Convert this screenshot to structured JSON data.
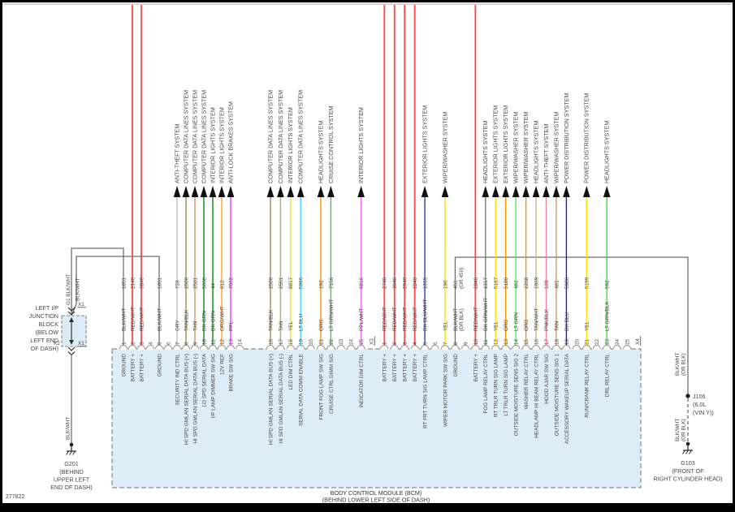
{
  "page": {
    "doc_number": "277822",
    "bcm_caption_line1": "BODY CONTROL MODULE (BCM)",
    "bcm_caption_line2": "(BEHIND LOWER LEFT SIDE OF DASH)"
  },
  "junction_block": {
    "label_lines": [
      "LEFT I/P",
      "JUNCTION",
      "BLOCK",
      "(BELOW",
      "LEFT END",
      "OF DASH)"
    ],
    "top_connector": "X1",
    "bottom_left_connector": "K2",
    "bottom_right_connector": "X1",
    "feed_wire_left_label": "G1 BLK/WHT",
    "feed_wire_right_label": "BLK/WHT",
    "ground_wire_label": "BLK/WHT",
    "ground_id": "G201",
    "ground_location_lines": [
      "(BEHIND",
      "UPPER LEFT",
      "END OF DASH)"
    ]
  },
  "right_ground_path": {
    "upper_wire_label": [
      "BLK/WHT",
      "(OR BLK)"
    ],
    "splice_id": "J106",
    "splice_note_lines": [
      "(6.0L",
      "(VIN Y))"
    ],
    "lower_wire_label": [
      "BLK/WHT",
      "(OR BLK)"
    ],
    "ground_id": "G103",
    "ground_location_lines": [
      "(FRONT OF",
      "RIGHT CYLINDER HEAD)"
    ]
  },
  "connectors": [
    {
      "end_label": "",
      "pins": [
        {
          "n": "1",
          "color": "BLK/WHT",
          "circuit": "1851",
          "fn": "GROUND",
          "dest": "",
          "route": "jb1"
        },
        {
          "n": "2",
          "color": "RED/WHT",
          "circuit": "2140",
          "fn": "BATTERY +",
          "dest": "",
          "route": "top"
        },
        {
          "n": "3",
          "color": "RED/WHT",
          "circuit": "3840",
          "fn": "BATTERY +",
          "dest": "",
          "route": "top"
        },
        {
          "n": "4",
          "color": "",
          "circuit": "",
          "fn": "",
          "dest": "",
          "route": ""
        },
        {
          "n": "5",
          "color": "BLK/WHT",
          "circuit": "1851",
          "fn": "GROUND",
          "dest": "",
          "route": "jb2"
        },
        {
          "n": "6",
          "color": "",
          "circuit": "",
          "fn": "",
          "dest": "",
          "route": ""
        },
        {
          "n": "7",
          "color": "GRY",
          "circuit": "728",
          "fn": "SECURITY IND CTRL",
          "dest": "ANTI-THEFT SYSTEM",
          "route": "arrow"
        },
        {
          "n": "8",
          "color": "TAN/BLK",
          "circuit": "2500",
          "fn": "HI SPD GMLAN SERIAL DATA BUS (+)",
          "dest": "COMPUTER DATA LINES SYSTEM",
          "route": "arrow"
        },
        {
          "n": "9",
          "color": "TAN",
          "circuit": "2501",
          "fn": "HI SPD GMLAN SERIAL DATA BUS (-)",
          "dest": "COMPUTER DATA LINES SYSTEM",
          "route": "arrow"
        },
        {
          "n": "10",
          "color": "DK GRN",
          "circuit": "5060",
          "fn": "LO SPD SERIAL DATA",
          "dest": "COMPUTER DATA LINES SYSTEM",
          "route": "arrow"
        },
        {
          "n": "11",
          "color": "DK GRN",
          "circuit": "44",
          "fn": "I/P LAMP DIMMER SW SIG",
          "dest": "INTERIOR LIGHTS SYSTEM",
          "route": "arrow"
        },
        {
          "n": "12",
          "color": "ORG/WHT",
          "circuit": "812",
          "fn": "12V REF",
          "dest": "INTERIOR LIGHTS SYSTEM",
          "route": "arrow"
        },
        {
          "n": "13",
          "color": "PPL",
          "circuit": "7062",
          "fn": "BRAKE SW SIG",
          "dest": "ANTI-LOCK BRAKES SYSTEM",
          "route": "arrow"
        },
        {
          "n": "14",
          "color": "",
          "circuit": "",
          "fn": "",
          "dest": "",
          "route": ""
        }
      ]
    },
    {
      "end_label": "X3",
      "pins": [
        {
          "n": "16",
          "color": "TAN/BLK",
          "circuit": "2500",
          "fn": "HI SPD GMLAN SERIAL DATA BUS (+)",
          "dest": "COMPUTER DATA LINES SYSTEM",
          "route": "arrow"
        },
        {
          "n": "17",
          "color": "TAN",
          "circuit": "2501",
          "fn": "HI SPD GMLAN SERIAL DATA BUS (-)",
          "dest": "COMPUTER DATA LINES SYSTEM",
          "route": "arrow"
        },
        {
          "n": "18",
          "color": "YEL",
          "circuit": "8817",
          "fn": "LED DIM CTRL",
          "dest": "INTERIOR LIGHTS SYSTEM",
          "route": "arrow"
        },
        {
          "n": "19",
          "color": "LT BLU",
          "circuit": "5986",
          "fn": "SERIAL DATA COMM ENABLE",
          "dest": "COMPUTER DATA LINES SYSTEM",
          "route": "arrow"
        },
        {
          "n": "20",
          "color": "",
          "circuit": "",
          "fn": "",
          "dest": "",
          "route": ""
        },
        {
          "n": "21",
          "color": "ORG",
          "circuit": "192",
          "fn": "FRONT FOG LAMP SW SIG",
          "dest": "HEADLIGHTS SYSTEM",
          "route": "arrow"
        },
        {
          "n": "22",
          "color": "LT GRN/WHT",
          "circuit": "7156",
          "fn": "CRUISE CTRL DIMM SIG",
          "dest": "CRUISE CONTROL SYSTEM",
          "route": "arrow"
        },
        {
          "n": "23",
          "color": "",
          "circuit": "",
          "fn": "",
          "dest": "",
          "route": ""
        },
        {
          "n": "24",
          "color": "",
          "circuit": "",
          "fn": "",
          "dest": "",
          "route": ""
        },
        {
          "n": "25",
          "color": "PPL/WHT",
          "circuit": "8816",
          "fn": "INDICATOR DIM CTRL",
          "dest": "INTERIOR LIGHTS SYSTEM",
          "route": "arrow"
        }
      ]
    },
    {
      "end_label": "X4",
      "pins": [
        {
          "n": "1",
          "color": "RED/WHT",
          "circuit": "2740",
          "fn": "BATTERY +",
          "dest": "",
          "route": "top"
        },
        {
          "n": "2",
          "color": "RED/WHT",
          "circuit": "3040",
          "fn": "BATTERY +",
          "dest": "",
          "route": "top"
        },
        {
          "n": "3",
          "color": "RED/WHT",
          "circuit": "2940",
          "fn": "BATTERY +",
          "dest": "",
          "route": "top"
        },
        {
          "n": "4",
          "color": "RED/WHT",
          "circuit": "2240",
          "fn": "BATTERY +",
          "dest": "",
          "route": "top"
        },
        {
          "n": "5",
          "color": "DK BLU/WHT",
          "circuit": "1315",
          "fn": "RT FRT TURN SIG LAMP CTRL",
          "dest": "EXTERIOR LIGHTS SYSTEM",
          "route": "arrow"
        },
        {
          "n": "6",
          "color": "",
          "circuit": "",
          "fn": "",
          "dest": "",
          "route": ""
        },
        {
          "n": "7",
          "color": "YEL",
          "circuit": "196",
          "fn": "WIPER MOTOR PARK SW SIG",
          "dest": "WIPER/WASHER SYSTEM",
          "route": "arrow"
        },
        {
          "n": "8",
          "color": "BLK/WHT",
          "color2": "(OR BLK)",
          "circuit": "451",
          "circuit2": "(OR 450)",
          "fn": "GROUND",
          "dest": "",
          "route": "rg"
        },
        {
          "n": "9",
          "color": "",
          "circuit": "",
          "fn": "",
          "dest": "",
          "route": ""
        },
        {
          "n": "10",
          "color": "RED/WHT",
          "circuit": "2840",
          "fn": "BATTERY +",
          "dest": "",
          "route": "top"
        },
        {
          "n": "11",
          "color": "DK GRN/WHT",
          "circuit": "1317",
          "fn": "FOG LAMP RELAY CTRL",
          "dest": "HEADLIGHTS SYSTEM",
          "route": "arrow"
        },
        {
          "n": "12",
          "color": "YEL",
          "circuit": "5187",
          "fn": "RT TRLR TURN SIG LAMP",
          "dest": "EXTERIOR LIGHTS SYSTEM",
          "route": "arrow"
        },
        {
          "n": "13",
          "color": "ORG",
          "circuit": "5186",
          "fn": "LT TRLR TURN SIG LAMP",
          "dest": "EXTERIOR LIGHTS SYSTEM",
          "route": "arrow"
        },
        {
          "n": "14",
          "color": "LT GRN",
          "circuit": "482",
          "fn": "OUTSIDE MOISTURE SENS SIG 2",
          "dest": "WIPER/WASHER SYSTEM",
          "route": "arrow"
        },
        {
          "n": "15",
          "color": "ORG",
          "circuit": "2268",
          "fn": "WASHER RELAY CTRL",
          "dest": "WIPER/WASHER SYSTEM",
          "route": "arrow"
        },
        {
          "n": "16",
          "color": "TAN/WHT",
          "circuit": "1969",
          "fn": "HEADLAMP HI BEAM RELAY CTRL",
          "dest": "HEADLIGHTS SYSTEM",
          "route": "arrow"
        },
        {
          "n": "17",
          "color": "PNK/BLK",
          "circuit": "109",
          "fn": "HOOD AJAR SW SIG",
          "dest": "ANTI-THEFT SYSTEM",
          "route": "arrow"
        },
        {
          "n": "18",
          "color": "TAN",
          "circuit": "481",
          "fn": "OUTSIDE MOISTURE SENS SIG 1",
          "dest": "WIPER/WASHER SYSTEM",
          "route": "arrow"
        },
        {
          "n": "19",
          "color": "DK BLU",
          "circuit": "5986",
          "fn": "ACCESSORY WAKEUP SERIAL DATA",
          "dest": "POWER DISTRIBUTION SYSTEM",
          "route": "arrow"
        },
        {
          "n": "20",
          "color": "",
          "circuit": "",
          "fn": "",
          "dest": "",
          "route": ""
        },
        {
          "n": "21",
          "color": "YEL",
          "circuit": "5199",
          "fn": "RUN/CRANK RELAY CTRL",
          "dest": "POWER DISTRIBUTION SYSTEM",
          "route": "arrow"
        },
        {
          "n": "22",
          "color": "",
          "circuit": "",
          "fn": "",
          "dest": "",
          "route": ""
        },
        {
          "n": "23",
          "color": "LT GRN/BLK",
          "circuit": "592",
          "fn": "DRL RELAY CTRL",
          "dest": "HEADLIGHTS SYSTEM",
          "route": "arrow"
        },
        {
          "n": "24",
          "color": "",
          "circuit": "",
          "fn": "",
          "dest": "",
          "route": ""
        },
        {
          "n": "25",
          "color": "",
          "circuit": "",
          "fn": "",
          "dest": "",
          "route": ""
        }
      ]
    }
  ],
  "palette": {
    "BLK/WHT": "#6e6e6e",
    "RED/WHT": "#ff4747",
    "GRY": "#bdbdbd",
    "TAN/BLK": "#a38b54",
    "TAN": "#bfa26c",
    "DK GRN": "#0c8a0c",
    "ORG/WHT": "#ffa51e",
    "PPL": "#ff30ff",
    "YEL": "#ffe200",
    "LT BLU": "#35d8ff",
    "ORG": "#ff9000",
    "LT GRN/WHT": "#37cf37",
    "PPL/WHT": "#ee6bee",
    "DK BLU/WHT": "#2a3fae",
    "DK GRN/WHT": "#4a9e4a",
    "LT GRN": "#3dfc3d",
    "TAN/WHT": "#cdb68a",
    "PNK/BLK": "#f585a5",
    "DK BLU": "#1722cc",
    "LT GRN/BLK": "#2ee82e",
    "text": "#474747",
    "bcm_fill": "#dcedf8",
    "border": "#8a8a8a",
    "arrow": "#111111"
  }
}
